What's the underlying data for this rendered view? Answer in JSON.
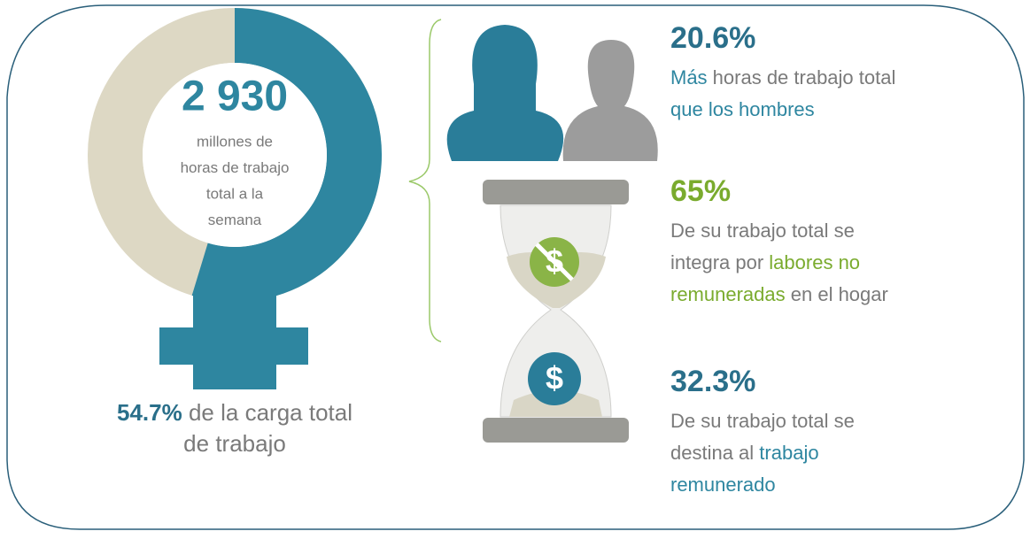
{
  "woman": {
    "total": "2 930",
    "subtitle": [
      "millones de",
      "horas de trabajo",
      "total a la",
      "semana"
    ],
    "share_value": 54.7,
    "share_label": "54.7%",
    "share_text": [
      " de la carga total",
      "de trabajo"
    ]
  },
  "stats": [
    {
      "value": "20.6%",
      "lines": [
        [
          {
            "text": "Más",
            "tone": "teal"
          },
          {
            "text": " horas de trabajo total",
            "tone": "gray"
          }
        ],
        [
          {
            "text": "que los hombres",
            "tone": "teal"
          }
        ]
      ]
    },
    {
      "value": "65%",
      "lines": [
        [
          {
            "text": "De su trabajo total se",
            "tone": "gray"
          }
        ],
        [
          {
            "text": "integra por ",
            "tone": "gray"
          },
          {
            "text": "labores no",
            "tone": "green"
          }
        ],
        [
          {
            "text": "remuneradas",
            "tone": "green"
          },
          {
            "text": " en el hogar",
            "tone": "gray"
          }
        ]
      ]
    },
    {
      "value": "32.3%",
      "lines": [
        [
          {
            "text": "De su trabajo total se",
            "tone": "gray"
          }
        ],
        [
          {
            "text": "destina al ",
            "tone": "gray"
          },
          {
            "text": "trabajo",
            "tone": "teal"
          }
        ],
        [
          {
            "text": "remunerado",
            "tone": "teal"
          }
        ]
      ]
    }
  ]
}
